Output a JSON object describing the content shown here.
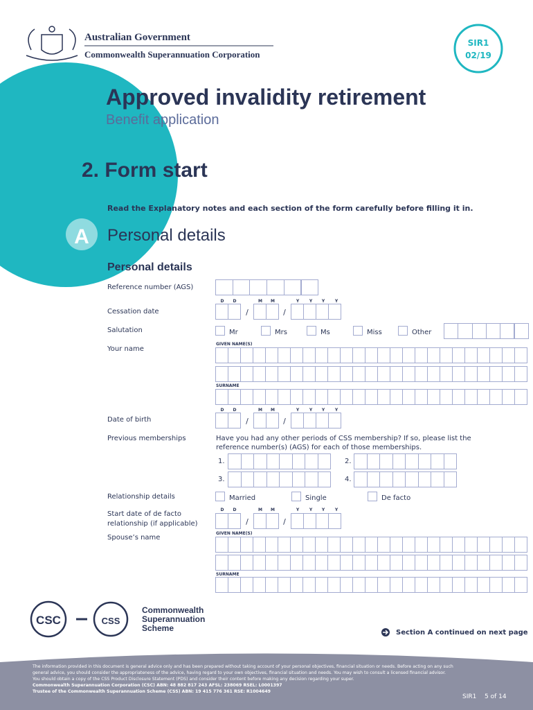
{
  "header": {
    "gov": "Australian Government",
    "org": "Commonwealth Superannuation Corporation",
    "code": "SIR1",
    "date": "02/19"
  },
  "title": "Approved invalidity retirement",
  "subtitle": "Benefit application",
  "section_title": "2. Form start",
  "instruction": "Read the Explanatory notes and each section of the form carefully before filling it in.",
  "section": {
    "letter": "A",
    "name": "Personal details"
  },
  "subsection": "Personal details",
  "fields": {
    "reference": "Reference number (AGS)",
    "cessation": "Cessation date",
    "salutation": "Salutation",
    "name": "Your name",
    "dob": "Date of birth",
    "previous": "Previous memberships",
    "relationship": "Relationship details",
    "start_date": [
      "Start date of de facto",
      "relationship (if applicable)"
    ],
    "spouse": "Spouse’s name"
  },
  "date_headers": [
    "D",
    "D",
    "M",
    "M",
    "Y",
    "Y",
    "Y",
    "Y"
  ],
  "date_separator": "/",
  "salutation_options": [
    "Mr",
    "Mrs",
    "Ms",
    "Miss",
    "Other"
  ],
  "given_names_label": "GIVEN NAME(S)",
  "surname_label": "SURNAME",
  "previous_question": "Have you had any other periods of CSS membership? If so, please list the reference number(s) (AGS) for each of those memberships.",
  "previous_numbers": [
    "1.",
    "2.",
    "3.",
    "4."
  ],
  "relationship_options": [
    "Married",
    "Single",
    "De facto"
  ],
  "footer": {
    "csc": "CSC",
    "css": "CSS",
    "scheme": [
      "Commonwealth",
      "Superannuation",
      "Scheme"
    ],
    "continued": "Section A continued on next page",
    "disclaimer": [
      "The information provided in this document is general advice only and has been prepared without taking account of your personal objectives, financial situation or needs. Before acting on any such",
      "general advice, you should consider the appropriateness of the advice, having regard to your own objectives, financial situation and needs. You may wish to consult a licensed financial advisor.",
      "You should obtain a copy of the CSS Product Disclosure Statement (PDS) and consider their content before making any decision regarding your super.",
      "Commonwealth Superannuation Corporation (CSC) ABN: 48 882 817 243 AFSL: 238069 RSEL: L0001397",
      "Trustee of the Commonwealth Superannuation Scheme (CSS) ABN: 19 415 776 361 RSE: R1004649"
    ],
    "code": "SIR1",
    "page": "5 of 14"
  }
}
